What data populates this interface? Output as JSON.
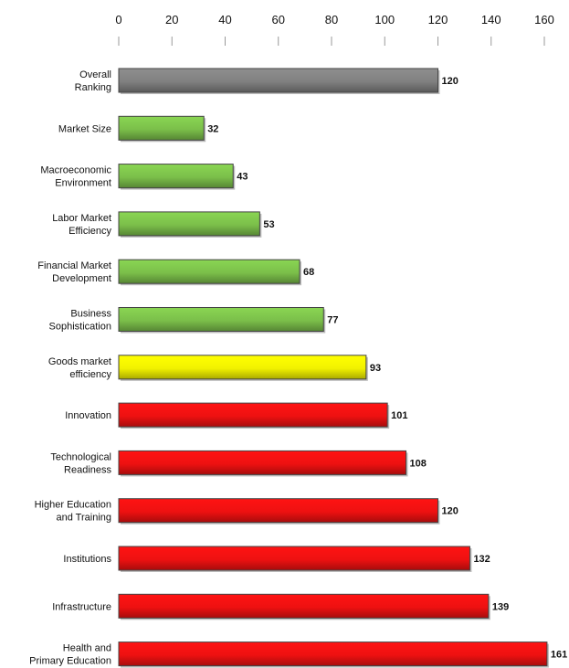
{
  "chart_data": {
    "type": "bar",
    "orientation": "horizontal",
    "title": "",
    "xlabel": "",
    "ylabel": "",
    "xlim": [
      0,
      160
    ],
    "x_ticks": [
      0,
      20,
      40,
      60,
      80,
      100,
      120,
      140,
      160
    ],
    "grid": false,
    "legend": "none",
    "categories": [
      "Overall Ranking",
      "Market Size",
      "Macroeconomic Environment",
      "Labor Market Efficiency",
      "Financial Market Development",
      "Business Sophistication",
      "Goods market efficiency",
      "Innovation",
      "Technological Readiness",
      "Higher Education and Training",
      "Institutions",
      "Infrastructure",
      "Health and Primary Education"
    ],
    "values": [
      120,
      32,
      43,
      53,
      68,
      77,
      93,
      101,
      108,
      120,
      132,
      139,
      161
    ],
    "bar_colors": [
      "#808080",
      "#7bbf4a",
      "#7bbf4a",
      "#7bbf4a",
      "#7bbf4a",
      "#7bbf4a",
      "#f2f200",
      "#ee1111",
      "#ee1111",
      "#ee1111",
      "#ee1111",
      "#ee1111",
      "#ee1111"
    ]
  }
}
